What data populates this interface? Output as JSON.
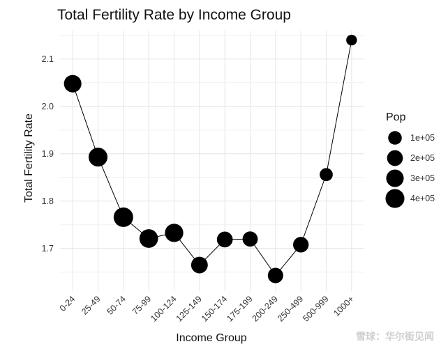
{
  "chart_data": {
    "type": "line",
    "title": "Total Fertility Rate by Income Group",
    "xlabel": "Income Group",
    "ylabel": "Total Fertility Rate",
    "categories": [
      "0-24",
      "25-49",
      "50-74",
      "75-99",
      "100-124",
      "125-149",
      "150-174",
      "175-199",
      "200-249",
      "250-499",
      "500-999",
      "1000+"
    ],
    "values": [
      2.048,
      1.893,
      1.766,
      1.721,
      1.733,
      1.665,
      1.719,
      1.72,
      1.643,
      1.708,
      1.856,
      2.14
    ],
    "pop": [
      300000,
      400000,
      450000,
      380000,
      360000,
      250000,
      200000,
      170000,
      180000,
      190000,
      80000,
      20000
    ],
    "ylim": [
      1.61,
      2.16
    ],
    "yticks": [
      1.7,
      1.8,
      1.9,
      2.0,
      2.1
    ],
    "ytick_labels": [
      "1.7",
      "1.8",
      "1.9",
      "2.0",
      "2.1"
    ],
    "grid": true,
    "legend": {
      "title": "Pop",
      "position": "right",
      "entries": [
        {
          "label": "1e+05",
          "value": 100000
        },
        {
          "label": "2e+05",
          "value": 200000
        },
        {
          "label": "3e+05",
          "value": 300000
        },
        {
          "label": "4e+05",
          "value": 400000
        }
      ]
    },
    "point_color": "#000000",
    "line_color": "#000000"
  },
  "watermark": "雪球：华尔街见闻"
}
